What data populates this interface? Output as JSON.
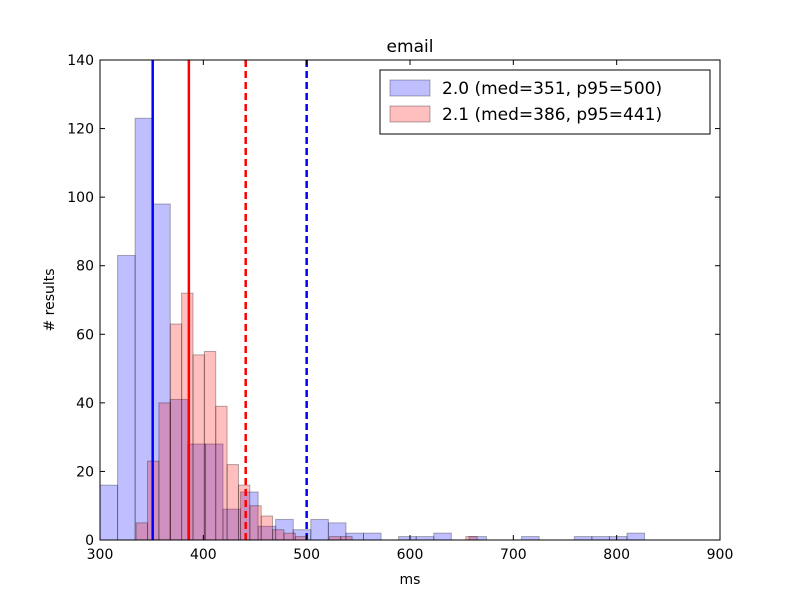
{
  "chart_data": {
    "type": "bar",
    "subtype": "overlapping-histogram",
    "title": "email",
    "xlabel": "ms",
    "ylabel": "# results",
    "xlim": [
      300,
      900
    ],
    "ylim": [
      0,
      140
    ],
    "xticks": [
      300,
      400,
      500,
      600,
      700,
      800,
      900
    ],
    "yticks": [
      0,
      20,
      40,
      60,
      80,
      100,
      120,
      140
    ],
    "grid": false,
    "legend_position": "top-right",
    "series": [
      {
        "name": "2.0 (med=351, p95=500)",
        "color": "#0000ff",
        "median": 351,
        "p95": 500,
        "bins": [
          {
            "x0": 300,
            "x1": 317,
            "count": 16
          },
          {
            "x0": 317,
            "x1": 334,
            "count": 83
          },
          {
            "x0": 334,
            "x1": 351,
            "count": 123
          },
          {
            "x0": 351,
            "x1": 368,
            "count": 98
          },
          {
            "x0": 368,
            "x1": 385,
            "count": 41
          },
          {
            "x0": 385,
            "x1": 402,
            "count": 28
          },
          {
            "x0": 402,
            "x1": 419,
            "count": 28
          },
          {
            "x0": 419,
            "x1": 436,
            "count": 9
          },
          {
            "x0": 436,
            "x1": 453,
            "count": 14
          },
          {
            "x0": 453,
            "x1": 470,
            "count": 4
          },
          {
            "x0": 470,
            "x1": 487,
            "count": 6
          },
          {
            "x0": 487,
            "x1": 504,
            "count": 3
          },
          {
            "x0": 504,
            "x1": 521,
            "count": 6
          },
          {
            "x0": 521,
            "x1": 538,
            "count": 5
          },
          {
            "x0": 538,
            "x1": 555,
            "count": 2
          },
          {
            "x0": 555,
            "x1": 572,
            "count": 2
          },
          {
            "x0": 589,
            "x1": 606,
            "count": 1
          },
          {
            "x0": 606,
            "x1": 623,
            "count": 1
          },
          {
            "x0": 623,
            "x1": 640,
            "count": 2
          },
          {
            "x0": 657,
            "x1": 674,
            "count": 1
          },
          {
            "x0": 708,
            "x1": 725,
            "count": 1
          },
          {
            "x0": 759,
            "x1": 776,
            "count": 1
          },
          {
            "x0": 776,
            "x1": 793,
            "count": 1
          },
          {
            "x0": 793,
            "x1": 810,
            "count": 1
          },
          {
            "x0": 810,
            "x1": 827,
            "count": 2
          }
        ]
      },
      {
        "name": "2.1 (med=386, p95=441)",
        "color": "#ff0000",
        "median": 386,
        "p95": 441,
        "bins": [
          {
            "x0": 335,
            "x1": 346,
            "count": 5
          },
          {
            "x0": 346,
            "x1": 357,
            "count": 23
          },
          {
            "x0": 357,
            "x1": 368,
            "count": 40
          },
          {
            "x0": 368,
            "x1": 379,
            "count": 63
          },
          {
            "x0": 379,
            "x1": 390,
            "count": 72
          },
          {
            "x0": 390,
            "x1": 401,
            "count": 54
          },
          {
            "x0": 401,
            "x1": 412,
            "count": 55
          },
          {
            "x0": 412,
            "x1": 423,
            "count": 39
          },
          {
            "x0": 423,
            "x1": 434,
            "count": 22
          },
          {
            "x0": 434,
            "x1": 445,
            "count": 16
          },
          {
            "x0": 445,
            "x1": 456,
            "count": 10
          },
          {
            "x0": 456,
            "x1": 467,
            "count": 7
          },
          {
            "x0": 467,
            "x1": 478,
            "count": 3
          },
          {
            "x0": 478,
            "x1": 489,
            "count": 2
          },
          {
            "x0": 489,
            "x1": 500,
            "count": 1
          },
          {
            "x0": 522,
            "x1": 533,
            "count": 1
          },
          {
            "x0": 533,
            "x1": 544,
            "count": 1
          },
          {
            "x0": 654,
            "x1": 665,
            "count": 1
          }
        ]
      }
    ]
  }
}
